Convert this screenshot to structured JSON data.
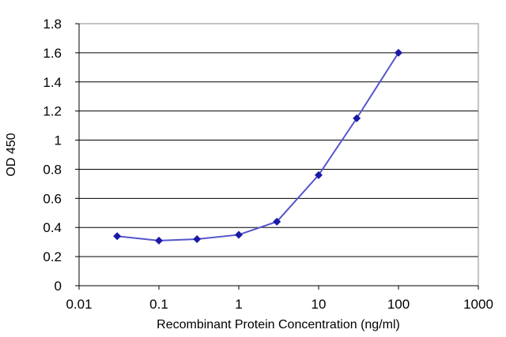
{
  "chart_data": {
    "type": "line",
    "title": "",
    "xlabel": "Recombinant Protein Concentration (ng/ml)",
    "ylabel": "OD 450",
    "xscale": "log",
    "xlim": [
      0.01,
      1000
    ],
    "ylim": [
      0,
      1.8
    ],
    "x_ticks": [
      "0.01",
      "0.1",
      "1",
      "10",
      "100",
      "1000"
    ],
    "y_ticks": [
      "0",
      "0.2",
      "0.4",
      "0.6",
      "0.8",
      "1",
      "1.2",
      "1.4",
      "1.6",
      "1.8"
    ],
    "grid": "horizontal",
    "legend": "none",
    "series": [
      {
        "x": [
          0.03,
          0.1,
          0.3,
          1,
          3,
          10,
          30,
          100
        ],
        "y": [
          0.34,
          0.31,
          0.32,
          0.35,
          0.44,
          0.76,
          1.15,
          1.6
        ]
      }
    ],
    "colors": {
      "series": "#1a1aa6",
      "line": "#5555cc",
      "grid": "#000000",
      "frame": "#888888"
    }
  }
}
